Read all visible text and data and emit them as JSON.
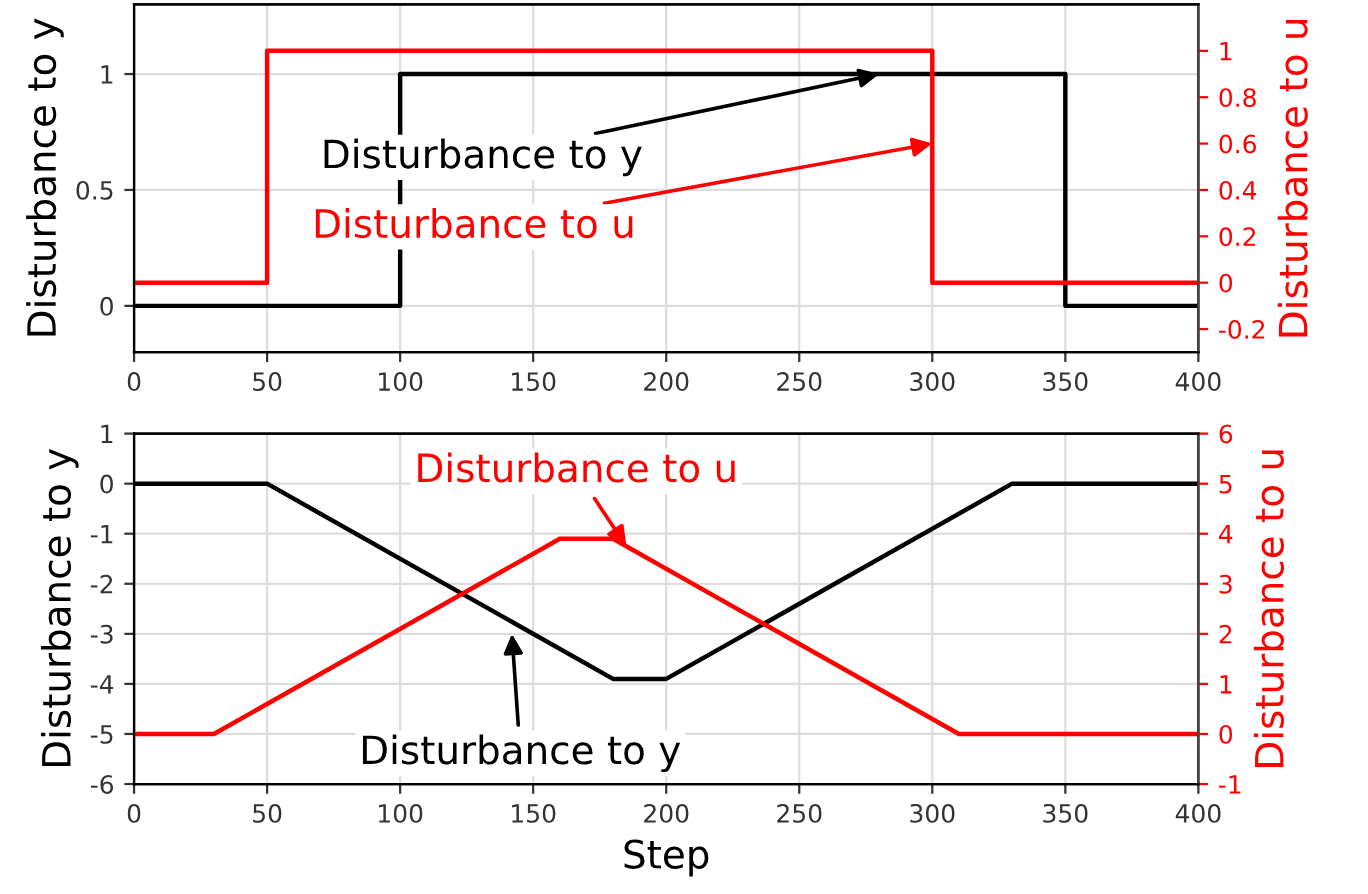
{
  "chart_data": [
    {
      "type": "line",
      "ylabel": "Disturbance to y",
      "y2label": "Disturbance to u",
      "xlim": [
        0,
        400
      ],
      "xticks": [
        0,
        50,
        100,
        150,
        200,
        250,
        300,
        350,
        400
      ],
      "ylim": [
        -0.2,
        1.3
      ],
      "yticks": [
        0,
        0.5,
        1
      ],
      "y2lim": [
        -0.3,
        1.2
      ],
      "y2ticks": [
        -0.2,
        0,
        0.2,
        0.4,
        0.6,
        0.8,
        1
      ],
      "grid": true,
      "series": [
        {
          "color": "#000000",
          "x": [
            0,
            100,
            100,
            350,
            350,
            400
          ],
          "values": [
            0,
            0,
            1,
            1,
            0,
            0
          ]
        },
        {
          "color": "#ff0000",
          "axis": "y2",
          "x": [
            0,
            50,
            50,
            300,
            300,
            400
          ],
          "values": [
            0,
            0,
            1,
            1,
            0,
            0
          ]
        }
      ],
      "annotations": [
        {
          "text": "Disturbance to y",
          "x": 280,
          "y": 1
        },
        {
          "text": "Disturbance to u",
          "x": 300,
          "y": 0.7
        }
      ]
    },
    {
      "type": "line",
      "xlabel": "Step",
      "ylabel": "Disturbance to y",
      "y2label": "Disturbance to u",
      "xlim": [
        0,
        400
      ],
      "xticks": [
        0,
        50,
        100,
        150,
        200,
        250,
        300,
        350,
        400
      ],
      "ylim": [
        -6,
        1
      ],
      "yticks": [
        -6,
        -5,
        -4,
        -3,
        -2,
        -1,
        0,
        1
      ],
      "y2lim": [
        -1,
        6
      ],
      "y2ticks": [
        -1,
        0,
        1,
        2,
        3,
        4,
        5,
        6
      ],
      "grid": true,
      "series": [
        {
          "color": "#000000",
          "x": [
            0,
            50,
            180,
            200,
            330,
            400
          ],
          "values": [
            0,
            0,
            -3.9,
            -3.9,
            0,
            0
          ]
        },
        {
          "color": "#ff0000",
          "axis": "y2",
          "x": [
            0,
            30,
            160,
            180,
            310,
            400
          ],
          "values": [
            0,
            0,
            3.9,
            3.9,
            0,
            0
          ]
        }
      ],
      "annotations": [
        {
          "text": "Disturbance to y",
          "x": 142,
          "y": -3
        },
        {
          "text": "Disturbance to u",
          "x": 185,
          "y": -1.25
        }
      ]
    }
  ]
}
